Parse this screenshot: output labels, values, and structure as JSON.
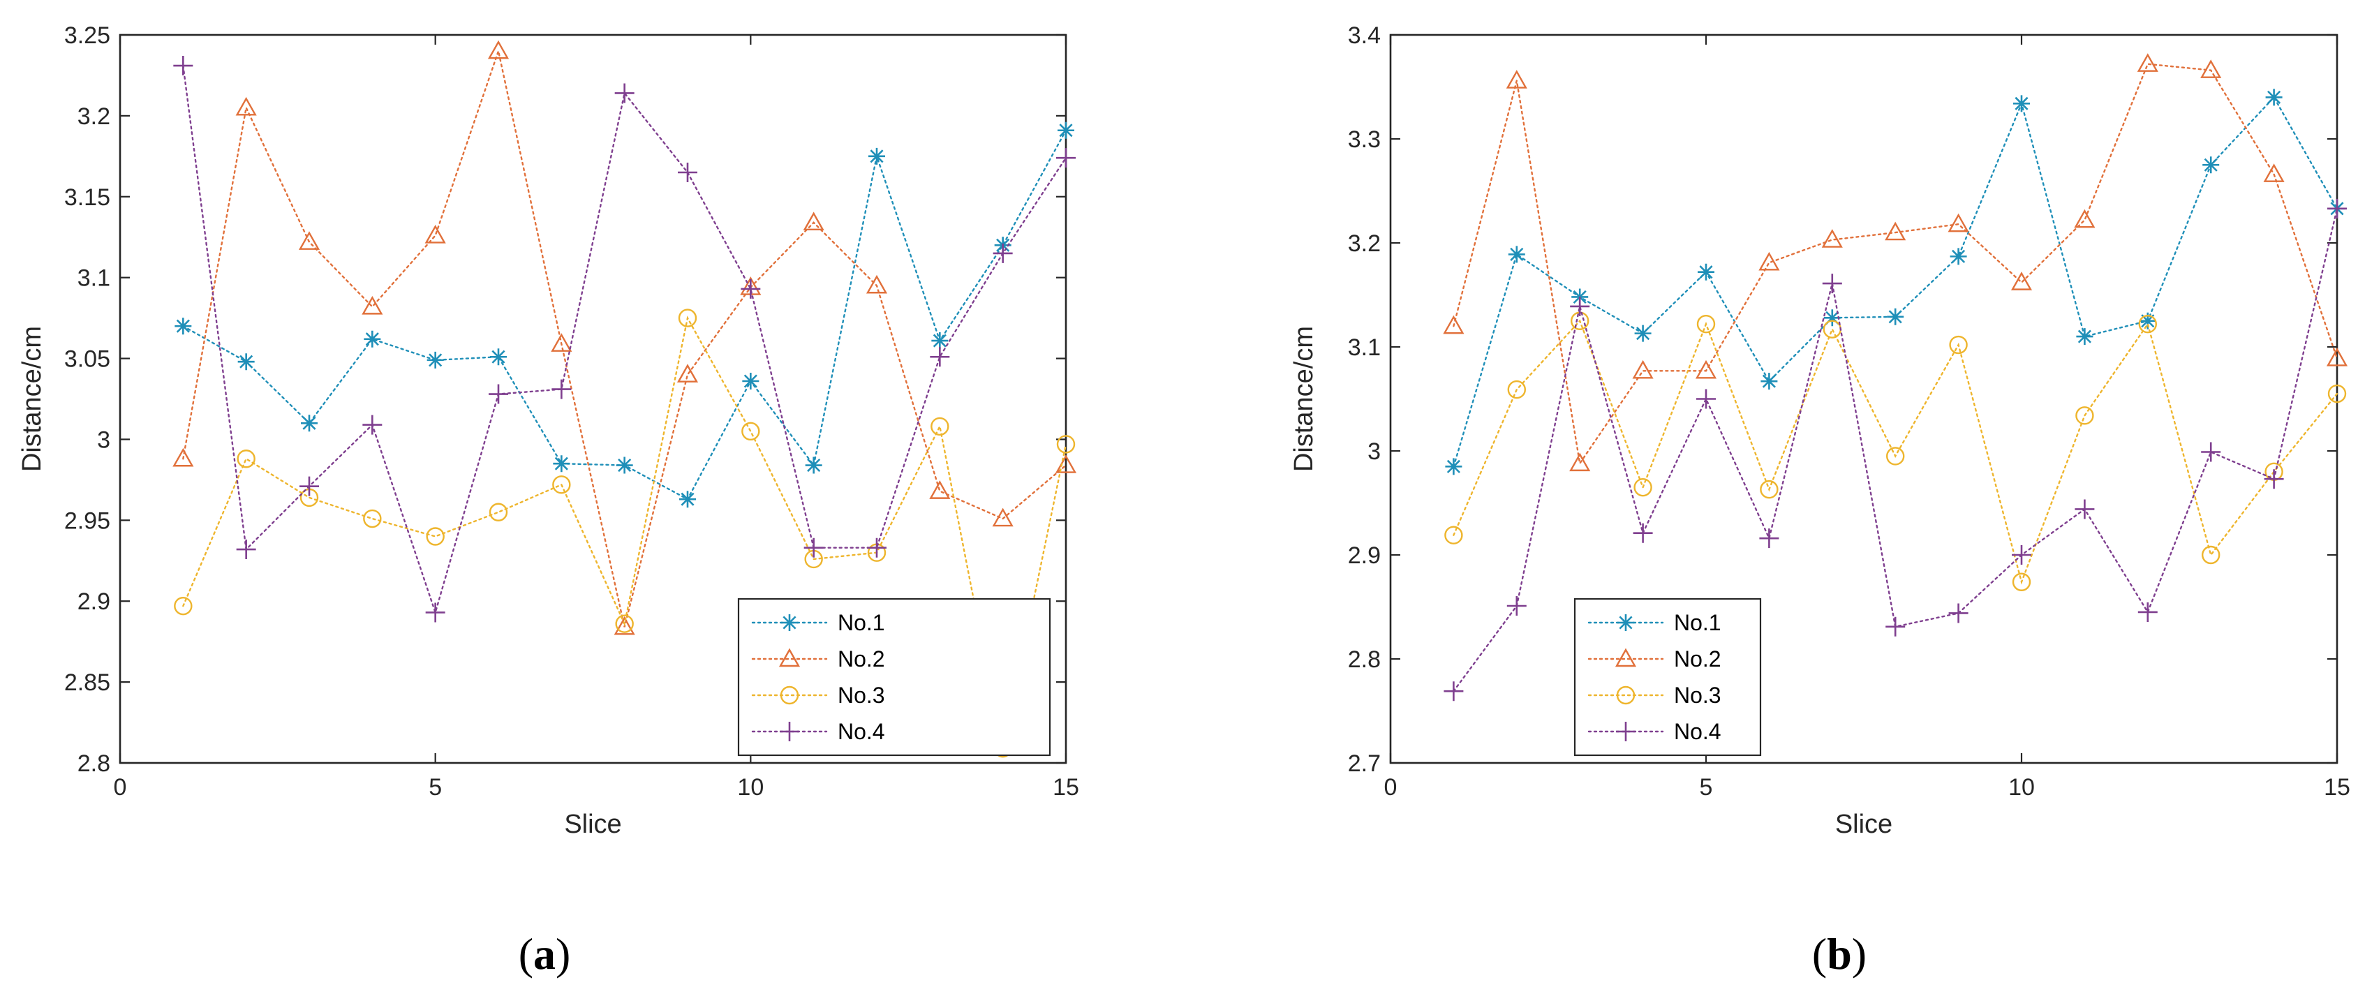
{
  "chart_data": [
    {
      "id": "a",
      "type": "line",
      "caption_open": "(",
      "caption_letter": "a",
      "caption_close": ")",
      "xlabel": "Slice",
      "ylabel": "Distance/cm",
      "xlim": [
        0,
        15
      ],
      "ylim": [
        2.8,
        3.25
      ],
      "xticks": [
        0,
        5,
        10,
        15
      ],
      "xtick_labels": [
        "0",
        "5",
        "10",
        "15"
      ],
      "yticks": [
        2.8,
        2.85,
        2.9,
        2.95,
        3.0,
        3.05,
        3.1,
        3.15,
        3.2,
        3.25
      ],
      "ytick_labels": [
        "2.8",
        "2.85",
        "2.9",
        "2.95",
        "3",
        "3.05",
        "3.1",
        "3.15",
        "3.2",
        "3.25"
      ],
      "grid": false,
      "legend_position": "bottom-right",
      "x": [
        1,
        2,
        3,
        4,
        5,
        6,
        7,
        8,
        9,
        10,
        11,
        12,
        13,
        14,
        15
      ],
      "series": [
        {
          "name": "No.1",
          "marker": "asterisk",
          "color": "#1f8fb8",
          "values": [
            3.07,
            3.048,
            3.01,
            3.062,
            3.049,
            3.051,
            2.985,
            2.984,
            2.963,
            3.036,
            2.984,
            3.175,
            3.061,
            3.12,
            3.191
          ]
        },
        {
          "name": "No.2",
          "marker": "triangle",
          "color": "#e1703a",
          "values": [
            2.988,
            3.205,
            3.122,
            3.082,
            3.126,
            3.24,
            3.059,
            2.884,
            3.04,
            3.094,
            3.134,
            3.095,
            2.968,
            2.951,
            2.984
          ]
        },
        {
          "name": "No.3",
          "marker": "circle",
          "color": "#eeb52d",
          "values": [
            2.897,
            2.988,
            2.964,
            2.951,
            2.94,
            2.955,
            2.972,
            2.886,
            3.075,
            3.005,
            2.926,
            2.93,
            3.008,
            2.809,
            2.997
          ]
        },
        {
          "name": "No.4",
          "marker": "plus",
          "color": "#7f3f8f",
          "values": [
            3.231,
            2.932,
            2.971,
            3.009,
            2.893,
            3.028,
            3.031,
            3.214,
            3.165,
            3.093,
            2.933,
            2.933,
            3.051,
            3.115,
            3.174
          ]
        }
      ]
    },
    {
      "id": "b",
      "type": "line",
      "caption_open": "(",
      "caption_letter": "b",
      "caption_close": ")",
      "xlabel": "Slice",
      "ylabel": "Distance/cm",
      "xlim": [
        0,
        15
      ],
      "ylim": [
        2.7,
        3.4
      ],
      "xticks": [
        0,
        5,
        10,
        15
      ],
      "xtick_labels": [
        "0",
        "5",
        "10",
        "15"
      ],
      "yticks": [
        2.7,
        2.8,
        2.9,
        3.0,
        3.1,
        3.2,
        3.3,
        3.4
      ],
      "ytick_labels": [
        "2.7",
        "2.8",
        "2.9",
        "3",
        "3.1",
        "3.2",
        "3.3",
        "3.4"
      ],
      "grid": false,
      "legend_position": "bottom-left",
      "x": [
        1,
        2,
        3,
        4,
        5,
        6,
        7,
        8,
        9,
        10,
        11,
        12,
        13,
        14,
        15
      ],
      "series": [
        {
          "name": "No.1",
          "marker": "asterisk",
          "color": "#1f8fb8",
          "values": [
            2.985,
            3.189,
            3.148,
            3.113,
            3.172,
            3.067,
            3.128,
            3.129,
            3.187,
            3.334,
            3.11,
            3.125,
            3.275,
            3.34,
            3.233
          ]
        },
        {
          "name": "No.2",
          "marker": "triangle",
          "color": "#e1703a",
          "values": [
            3.12,
            3.356,
            2.988,
            3.077,
            3.077,
            3.181,
            3.203,
            3.21,
            3.218,
            3.162,
            3.222,
            3.372,
            3.366,
            3.266,
            3.089
          ]
        },
        {
          "name": "No.3",
          "marker": "circle",
          "color": "#eeb52d",
          "values": [
            2.919,
            3.059,
            3.125,
            2.965,
            3.122,
            2.963,
            3.117,
            2.995,
            3.102,
            2.874,
            3.034,
            3.122,
            2.9,
            2.98,
            3.055
          ]
        },
        {
          "name": "No.4",
          "marker": "plus",
          "color": "#7f3f8f",
          "values": [
            2.769,
            2.851,
            3.139,
            2.921,
            3.05,
            2.916,
            3.161,
            2.831,
            2.844,
            2.9,
            2.944,
            2.845,
            2.999,
            2.973,
            3.233
          ]
        }
      ]
    }
  ]
}
